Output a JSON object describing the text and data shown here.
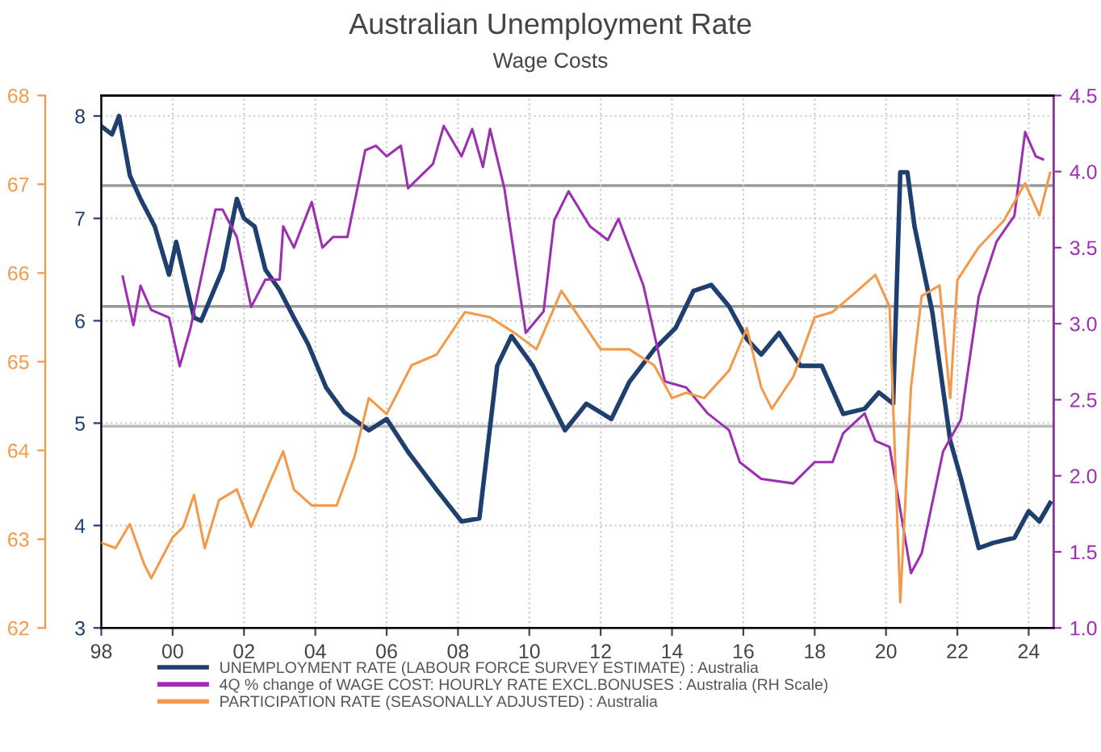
{
  "chart_data": {
    "type": "line",
    "title": "Australian Unemployment Rate",
    "subtitle": "Wage Costs",
    "xlim": [
      1998,
      2024.7
    ],
    "xticks": [
      {
        "value": 1998,
        "label": "98"
      },
      {
        "value": 2000,
        "label": "00"
      },
      {
        "value": 2002,
        "label": "02"
      },
      {
        "value": 2004,
        "label": "04"
      },
      {
        "value": 2006,
        "label": "06"
      },
      {
        "value": 2008,
        "label": "08"
      },
      {
        "value": 2010,
        "label": "10"
      },
      {
        "value": 2012,
        "label": "12"
      },
      {
        "value": 2014,
        "label": "14"
      },
      {
        "value": 2016,
        "label": "16"
      },
      {
        "value": 2018,
        "label": "18"
      },
      {
        "value": 2020,
        "label": "20"
      },
      {
        "value": 2022,
        "label": "22"
      },
      {
        "value": 2024,
        "label": "24"
      }
    ],
    "ylim": [
      3,
      8.2
    ],
    "yticks": [
      3,
      4,
      5,
      6,
      7,
      8
    ],
    "y2lim": [
      1.0,
      4.5
    ],
    "y2ticks": [
      {
        "value": 1.0,
        "label": "1.0"
      },
      {
        "value": 1.5,
        "label": "1.5"
      },
      {
        "value": 2.0,
        "label": "2.0"
      },
      {
        "value": 2.5,
        "label": "2.5"
      },
      {
        "value": 3.0,
        "label": "3.0"
      },
      {
        "value": 3.5,
        "label": "3.5"
      },
      {
        "value": 4.0,
        "label": "4.0"
      },
      {
        "value": 4.5,
        "label": "4.5"
      }
    ],
    "y3lim": [
      62,
      68
    ],
    "y3ticks": [
      62,
      63,
      64,
      65,
      66,
      67,
      68
    ],
    "grid": true,
    "legend": "bottom",
    "line_style": "solid",
    "ref_lines": [
      {
        "axis": "y",
        "value": 7.32,
        "color": "#9a9a9a"
      },
      {
        "axis": "y",
        "value": 6.14,
        "color": "#9a9a9a"
      },
      {
        "axis": "y",
        "value": 4.97,
        "color": "#bbbbbb"
      }
    ],
    "series": [
      {
        "name": "UNEMPLOYMENT RATE (LABOUR FORCE SURVEY ESTIMATE) : Australia",
        "color": "#1f3f6e",
        "axis": "y",
        "x": [
          1998.0,
          1998.3,
          1998.5,
          1998.8,
          1999.1,
          1999.5,
          1999.9,
          2000.1,
          2000.6,
          2000.8,
          2001.4,
          2001.8,
          2002.0,
          2002.3,
          2002.6,
          2003.0,
          2003.4,
          2003.8,
          2004.3,
          2004.8,
          2005.5,
          2006.0,
          2006.6,
          2007.4,
          2008.1,
          2008.6,
          2009.1,
          2009.5,
          2010.1,
          2011.0,
          2011.6,
          2012.3,
          2012.8,
          2013.5,
          2014.1,
          2014.6,
          2015.1,
          2015.6,
          2016.1,
          2016.5,
          2017.0,
          2017.6,
          2018.2,
          2018.8,
          2019.4,
          2019.8,
          2020.2,
          2020.4,
          2020.6,
          2020.8,
          2021.3,
          2021.8,
          2022.1,
          2022.6,
          2023.0,
          2023.6,
          2024.0,
          2024.3,
          2024.6
        ],
        "values": [
          7.9,
          7.82,
          8.0,
          7.42,
          7.19,
          6.92,
          6.45,
          6.77,
          6.03,
          6.0,
          6.5,
          7.19,
          7.0,
          6.92,
          6.5,
          6.3,
          6.03,
          5.77,
          5.35,
          5.11,
          4.93,
          5.04,
          4.72,
          4.35,
          4.04,
          4.07,
          5.56,
          5.85,
          5.56,
          4.93,
          5.19,
          5.04,
          5.4,
          5.72,
          5.93,
          6.29,
          6.35,
          6.14,
          5.82,
          5.67,
          5.88,
          5.56,
          5.56,
          5.09,
          5.14,
          5.3,
          5.19,
          7.45,
          7.45,
          6.92,
          6.08,
          4.83,
          4.46,
          3.78,
          3.83,
          3.88,
          4.14,
          4.04,
          4.22
        ]
      },
      {
        "name": "4Q % change of WAGE COST: HOURLY RATE EXCL.BONUSES : Australia (RH Scale)",
        "color": "#9b30b0",
        "axis": "y2",
        "x": [
          1998.6,
          1998.9,
          1999.1,
          1999.4,
          1999.9,
          2000.2,
          2000.5,
          2001.2,
          2001.4,
          2001.8,
          2002.2,
          2002.6,
          2003.0,
          2003.1,
          2003.4,
          2003.9,
          2004.2,
          2004.5,
          2004.9,
          2005.4,
          2005.7,
          2006.0,
          2006.4,
          2006.6,
          2007.3,
          2007.6,
          2008.1,
          2008.4,
          2008.7,
          2008.9,
          2009.3,
          2009.9,
          2010.4,
          2010.7,
          2011.1,
          2011.7,
          2012.2,
          2012.5,
          2013.2,
          2013.8,
          2014.4,
          2015.0,
          2015.6,
          2015.9,
          2016.5,
          2017.4,
          2018.0,
          2018.5,
          2018.8,
          2019.4,
          2019.7,
          2020.1,
          2020.7,
          2021.0,
          2021.6,
          2022.1,
          2022.6,
          2023.1,
          2023.6,
          2023.9,
          2024.2,
          2024.4
        ],
        "values": [
          3.31,
          2.99,
          3.25,
          3.09,
          3.04,
          2.72,
          2.97,
          3.75,
          3.75,
          3.57,
          3.11,
          3.29,
          3.29,
          3.64,
          3.5,
          3.8,
          3.5,
          3.57,
          3.57,
          4.14,
          4.17,
          4.1,
          4.17,
          3.89,
          4.05,
          4.3,
          4.1,
          4.28,
          4.03,
          4.28,
          3.89,
          2.94,
          3.08,
          3.68,
          3.87,
          3.64,
          3.55,
          3.69,
          3.25,
          2.62,
          2.58,
          2.41,
          2.3,
          2.09,
          1.98,
          1.95,
          2.09,
          2.09,
          2.28,
          2.41,
          2.23,
          2.19,
          1.36,
          1.49,
          2.16,
          2.37,
          3.18,
          3.54,
          3.71,
          4.26,
          4.1,
          4.08
        ]
      },
      {
        "name": "PARTICIPATION RATE (SEASONALLY ADJUSTED) : Australia",
        "color": "#f39a4a",
        "axis": "y3",
        "x": [
          1998.0,
          1998.4,
          1998.8,
          1999.2,
          1999.4,
          2000.0,
          2000.3,
          2000.6,
          2000.9,
          2001.3,
          2001.8,
          2002.2,
          2002.7,
          2003.1,
          2003.4,
          2003.9,
          2004.6,
          2005.1,
          2005.5,
          2006.0,
          2006.7,
          2007.4,
          2008.2,
          2008.9,
          2009.6,
          2010.2,
          2010.9,
          2011.4,
          2012.0,
          2012.8,
          2013.5,
          2014.0,
          2014.4,
          2014.9,
          2015.6,
          2016.1,
          2016.5,
          2016.8,
          2017.4,
          2018.0,
          2018.5,
          2019.2,
          2019.7,
          2020.1,
          2020.4,
          2020.7,
          2021.0,
          2021.5,
          2021.8,
          2022.0,
          2022.6,
          2023.3,
          2023.9,
          2024.3,
          2024.6
        ],
        "values": [
          62.96,
          62.9,
          63.17,
          62.72,
          62.56,
          63.02,
          63.14,
          63.5,
          62.9,
          63.44,
          63.56,
          63.14,
          63.62,
          63.99,
          63.56,
          63.38,
          63.38,
          63.93,
          64.59,
          64.41,
          64.96,
          65.08,
          65.56,
          65.5,
          65.32,
          65.14,
          65.8,
          65.5,
          65.14,
          65.14,
          64.96,
          64.59,
          64.65,
          64.59,
          64.9,
          65.38,
          64.71,
          64.47,
          64.83,
          65.5,
          65.56,
          65.8,
          65.98,
          65.62,
          62.29,
          64.71,
          65.74,
          65.86,
          64.59,
          65.92,
          66.29,
          66.59,
          67.01,
          66.65,
          67.13
        ]
      }
    ]
  }
}
